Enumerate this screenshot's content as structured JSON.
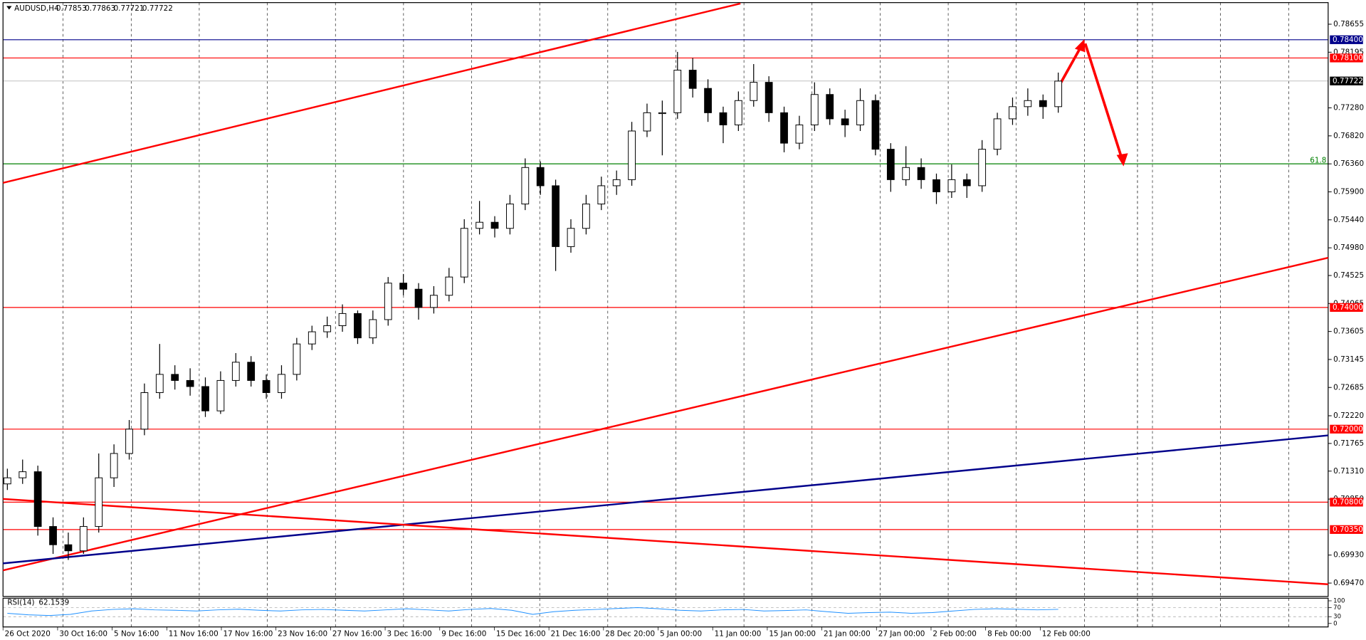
{
  "chart_data": [
    {
      "type": "candlestick",
      "title": "AUDUSD,H4",
      "header_values": [
        0.77853,
        0.77863,
        0.77721,
        0.77722
      ],
      "ylim": [
        0.6925,
        0.7901
      ],
      "yticks": [
        0.78655,
        0.78195,
        {
          "value": 0.7728,
          "label": "0.77280"
        },
        {
          "value": 0.7682,
          "label": "0.76820"
        },
        {
          "value": 0.7636,
          "label": "0.76360"
        },
        {
          "value": 0.759,
          "label": "0.75900"
        },
        {
          "value": 0.7544,
          "label": "0.75440"
        },
        {
          "value": 0.7498,
          "label": "0.74980"
        },
        0.74525,
        0.74065,
        0.73605,
        0.73145,
        0.72685,
        {
          "value": 0.7222,
          "label": "0.72220"
        },
        0.71765,
        {
          "value": 0.7131,
          "label": "0.71310"
        },
        {
          "value": 0.7085,
          "label": "0.70850"
        },
        {
          "value": 0.6993,
          "label": "0.69930"
        },
        {
          "value": 0.6947,
          "label": "0.69470"
        }
      ],
      "time_labels": [
        "26 Oct 2020",
        "30 Oct 16:00",
        "5 Nov 16:00",
        "11 Nov 16:00",
        "17 Nov 16:00",
        "23 Nov 16:00",
        "27 Nov 16:00",
        "3 Dec 16:00",
        "9 Dec 16:00",
        "15 Dec 16:00",
        "21 Dec 16:00",
        "28 Dec 20:00",
        "5 Jan 00:00",
        "11 Jan 00:00",
        "15 Jan 00:00",
        "21 Jan 00:00",
        "27 Jan 00:00",
        "2 Feb 00:00",
        "8 Feb 00:00",
        "12 Feb 00:00"
      ],
      "levels": [
        {
          "value": 0.784,
          "label": "0.78400",
          "color": "#00008b"
        },
        {
          "value": 0.781,
          "label": "0.78100",
          "color": "#ff0000"
        },
        {
          "value": 0.74,
          "label": "0.74000",
          "color": "#ff0000"
        },
        {
          "value": 0.72,
          "label": "0.72000",
          "color": "#ff0000"
        },
        {
          "value": 0.708,
          "label": "0.70800",
          "color": "#ff0000"
        },
        {
          "value": 0.7035,
          "label": "0.70350",
          "color": "#ff0000"
        }
      ],
      "fib_level": {
        "value": 0.7636,
        "label": "61.8",
        "color": "#008000"
      },
      "current_price": 0.77722,
      "candles": [
        [
          0.711,
          0.7135,
          0.71,
          0.712
        ],
        [
          0.712,
          0.715,
          0.711,
          0.713
        ],
        [
          0.713,
          0.714,
          0.7025,
          0.704
        ],
        [
          0.704,
          0.7055,
          0.6995,
          0.701
        ],
        [
          0.701,
          0.703,
          0.6985,
          0.7
        ],
        [
          0.7,
          0.7055,
          0.6995,
          0.704
        ],
        [
          0.704,
          0.716,
          0.703,
          0.712
        ],
        [
          0.712,
          0.7175,
          0.7105,
          0.716
        ],
        [
          0.716,
          0.7215,
          0.715,
          0.72
        ],
        [
          0.72,
          0.7275,
          0.719,
          0.726
        ],
        [
          0.726,
          0.734,
          0.725,
          0.729
        ],
        [
          0.729,
          0.7305,
          0.7265,
          0.728
        ],
        [
          0.728,
          0.73,
          0.7255,
          0.727
        ],
        [
          0.727,
          0.7285,
          0.722,
          0.723
        ],
        [
          0.723,
          0.7295,
          0.7225,
          0.728
        ],
        [
          0.728,
          0.7325,
          0.727,
          0.731
        ],
        [
          0.731,
          0.732,
          0.727,
          0.728
        ],
        [
          0.728,
          0.729,
          0.725,
          0.726
        ],
        [
          0.726,
          0.7305,
          0.725,
          0.729
        ],
        [
          0.729,
          0.735,
          0.728,
          0.734
        ],
        [
          0.734,
          0.737,
          0.733,
          0.736
        ],
        [
          0.736,
          0.7385,
          0.735,
          0.737
        ],
        [
          0.737,
          0.7405,
          0.736,
          0.739
        ],
        [
          0.739,
          0.7395,
          0.734,
          0.735
        ],
        [
          0.735,
          0.7395,
          0.734,
          0.738
        ],
        [
          0.738,
          0.745,
          0.737,
          0.744
        ],
        [
          0.744,
          0.7455,
          0.742,
          0.743
        ],
        [
          0.743,
          0.744,
          0.738,
          0.74
        ],
        [
          0.74,
          0.7435,
          0.739,
          0.742
        ],
        [
          0.742,
          0.7465,
          0.741,
          0.745
        ],
        [
          0.745,
          0.7545,
          0.744,
          0.753
        ],
        [
          0.753,
          0.7575,
          0.752,
          0.754
        ],
        [
          0.754,
          0.755,
          0.7515,
          0.753
        ],
        [
          0.753,
          0.7585,
          0.752,
          0.757
        ],
        [
          0.757,
          0.7645,
          0.756,
          0.763
        ],
        [
          0.763,
          0.764,
          0.7585,
          0.76
        ],
        [
          0.76,
          0.761,
          0.746,
          0.75
        ],
        [
          0.75,
          0.7545,
          0.749,
          0.753
        ],
        [
          0.753,
          0.7585,
          0.752,
          0.757
        ],
        [
          0.757,
          0.7615,
          0.756,
          0.76
        ],
        [
          0.76,
          0.7625,
          0.7585,
          0.761
        ],
        [
          0.761,
          0.7705,
          0.76,
          0.769
        ],
        [
          0.769,
          0.7735,
          0.768,
          0.772
        ],
        [
          0.772,
          0.774,
          0.765,
          0.772
        ],
        [
          0.772,
          0.782,
          0.771,
          0.779
        ],
        [
          0.779,
          0.781,
          0.7745,
          0.776
        ],
        [
          0.776,
          0.7775,
          0.7705,
          0.772
        ],
        [
          0.772,
          0.773,
          0.767,
          0.77
        ],
        [
          0.77,
          0.7755,
          0.769,
          0.774
        ],
        [
          0.774,
          0.78,
          0.773,
          0.777
        ],
        [
          0.777,
          0.778,
          0.7705,
          0.772
        ],
        [
          0.772,
          0.773,
          0.7655,
          0.767
        ],
        [
          0.767,
          0.7715,
          0.766,
          0.77
        ],
        [
          0.77,
          0.777,
          0.769,
          0.775
        ],
        [
          0.775,
          0.776,
          0.77,
          0.771
        ],
        [
          0.771,
          0.7725,
          0.768,
          0.77
        ],
        [
          0.77,
          0.776,
          0.769,
          0.774
        ],
        [
          0.774,
          0.775,
          0.765,
          0.766
        ],
        [
          0.766,
          0.767,
          0.759,
          0.761
        ],
        [
          0.761,
          0.7665,
          0.76,
          0.763
        ],
        [
          0.763,
          0.7645,
          0.7595,
          0.761
        ],
        [
          0.761,
          0.762,
          0.757,
          0.759
        ],
        [
          0.759,
          0.7635,
          0.758,
          0.761
        ],
        [
          0.761,
          0.762,
          0.758,
          0.76
        ],
        [
          0.76,
          0.7675,
          0.759,
          0.766
        ],
        [
          0.766,
          0.772,
          0.765,
          0.771
        ],
        [
          0.771,
          0.7745,
          0.77,
          0.773
        ],
        [
          0.773,
          0.776,
          0.7715,
          0.774
        ],
        [
          0.774,
          0.775,
          0.771,
          0.773
        ],
        [
          0.773,
          0.7786,
          0.772,
          0.7772
        ]
      ]
    },
    {
      "type": "line",
      "title": "RSI(14)",
      "last_value": 62.1539,
      "color": "#1e90ff",
      "ylim": [
        0,
        100
      ],
      "yticks": [
        100,
        70,
        30,
        0
      ],
      "values": [
        45,
        38,
        35,
        40,
        55,
        62,
        65,
        60,
        58,
        55,
        60,
        63,
        58,
        55,
        60,
        62,
        58,
        55,
        60,
        65,
        60,
        55,
        62,
        66,
        58,
        40,
        52,
        58,
        62,
        66,
        70,
        65,
        58,
        55,
        60,
        62,
        55,
        57,
        60,
        52,
        45,
        48,
        50,
        45,
        48,
        55,
        62,
        65,
        63,
        60,
        62.1539
      ]
    }
  ]
}
